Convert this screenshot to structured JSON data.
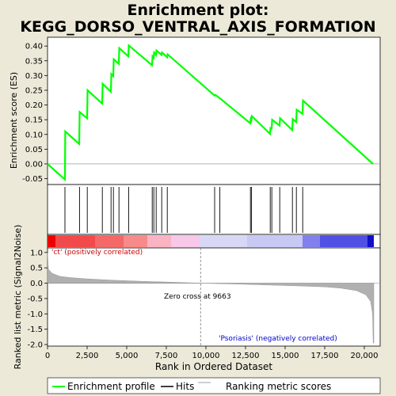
{
  "chart_data": {
    "title_line1": "Enrichment plot:",
    "title_line2": "KEGG_DORSO_VENTRAL_AXIS_FORMATION",
    "type": "line",
    "es_panel": {
      "ylabel": "Enrichment score (ES)",
      "ylim": [
        -0.07,
        0.43
      ],
      "yticks": [
        -0.05,
        0.0,
        0.05,
        0.1,
        0.15,
        0.2,
        0.25,
        0.3,
        0.35,
        0.4
      ],
      "ytick_labels": [
        "-0.05",
        "0.00",
        "0.05",
        "0.10",
        "0.15",
        "0.20",
        "0.25",
        "0.30",
        "0.35",
        "0.40"
      ],
      "line_color": "#00ff00",
      "points": [
        [
          0,
          0.0
        ],
        [
          1100,
          -0.053
        ],
        [
          1120,
          0.11
        ],
        [
          2000,
          0.068
        ],
        [
          2030,
          0.176
        ],
        [
          2500,
          0.155
        ],
        [
          2530,
          0.25
        ],
        [
          3450,
          0.205
        ],
        [
          3480,
          0.272
        ],
        [
          4000,
          0.245
        ],
        [
          4030,
          0.305
        ],
        [
          4150,
          0.298
        ],
        [
          4180,
          0.355
        ],
        [
          4500,
          0.34
        ],
        [
          4530,
          0.393
        ],
        [
          5100,
          0.365
        ],
        [
          5130,
          0.402
        ],
        [
          6600,
          0.335
        ],
        [
          6630,
          0.365
        ],
        [
          6700,
          0.36
        ],
        [
          6730,
          0.378
        ],
        [
          6850,
          0.37
        ],
        [
          6880,
          0.385
        ],
        [
          7200,
          0.37
        ],
        [
          7230,
          0.378
        ],
        [
          7550,
          0.362
        ],
        [
          7580,
          0.372
        ],
        [
          10550,
          0.232
        ],
        [
          10600,
          0.234
        ],
        [
          10900,
          0.222
        ],
        [
          12800,
          0.138
        ],
        [
          12830,
          0.152
        ],
        [
          12870,
          0.148
        ],
        [
          12900,
          0.162
        ],
        [
          14050,
          0.102
        ],
        [
          14080,
          0.122
        ],
        [
          14150,
          0.12
        ],
        [
          14180,
          0.15
        ],
        [
          14650,
          0.13
        ],
        [
          14680,
          0.155
        ],
        [
          15450,
          0.115
        ],
        [
          15480,
          0.152
        ],
        [
          15700,
          0.142
        ],
        [
          15730,
          0.184
        ],
        [
          16100,
          0.17
        ],
        [
          16130,
          0.215
        ],
        [
          20550,
          0.0
        ]
      ]
    },
    "hits": {
      "positions": [
        1100,
        2020,
        2510,
        3460,
        4010,
        4160,
        4510,
        5120,
        6610,
        6710,
        6860,
        7210,
        7560,
        10550,
        10880,
        12810,
        12880,
        14060,
        14160,
        14660,
        15460,
        15710,
        16110
      ]
    },
    "heatbar": {
      "segments": [
        {
          "from": 0,
          "to": 500,
          "color": "#ee0000"
        },
        {
          "from": 500,
          "to": 3000,
          "color": "#f24a4a"
        },
        {
          "from": 3000,
          "to": 4800,
          "color": "#f56868"
        },
        {
          "from": 4800,
          "to": 6300,
          "color": "#f88a8a"
        },
        {
          "from": 6300,
          "to": 7800,
          "color": "#fab3c3"
        },
        {
          "from": 7800,
          "to": 9600,
          "color": "#f8c8e8"
        },
        {
          "from": 9600,
          "to": 12600,
          "color": "#d8d8f6"
        },
        {
          "from": 12600,
          "to": 16100,
          "color": "#c8c8f4"
        },
        {
          "from": 16100,
          "to": 17200,
          "color": "#8080ee"
        },
        {
          "from": 17200,
          "to": 20200,
          "color": "#5050e4"
        },
        {
          "from": 20200,
          "to": 20600,
          "color": "#1010c8"
        }
      ]
    },
    "metric_panel": {
      "ylabel": "Ranked list metric (Signal2Noise)",
      "ylim": [
        -2.05,
        1.15
      ],
      "yticks": [
        1.0,
        0.5,
        0.0,
        -0.5,
        -1.0,
        -1.5,
        -2.0
      ],
      "ytick_labels": [
        "1.0",
        "0.5",
        "0.0",
        "-0.5",
        "-1.0",
        "-1.5",
        "-2.0"
      ],
      "profile": [
        [
          0,
          1.0
        ],
        [
          60,
          0.45
        ],
        [
          300,
          0.32
        ],
        [
          800,
          0.22
        ],
        [
          1500,
          0.18
        ],
        [
          2500,
          0.14
        ],
        [
          4000,
          0.1
        ],
        [
          6000,
          0.06
        ],
        [
          8000,
          0.03
        ],
        [
          9663,
          0.0
        ],
        [
          12000,
          -0.03
        ],
        [
          14000,
          -0.06
        ],
        [
          16000,
          -0.09
        ],
        [
          17500,
          -0.12
        ],
        [
          18500,
          -0.16
        ],
        [
          19500,
          -0.24
        ],
        [
          20100,
          -0.38
        ],
        [
          20400,
          -0.6
        ],
        [
          20520,
          -1.0
        ],
        [
          20560,
          -1.95
        ],
        [
          20600,
          -1.95
        ]
      ],
      "pos_label": "'ct' (positively correlated)",
      "neg_label": "'Psoriasis' (negatively correlated)",
      "zero_cross_label": "Zero cross at 9663",
      "zero_cross": 9663
    },
    "xaxis": {
      "xlabel": "Rank in Ordered Dataset",
      "xlim": [
        0,
        21000
      ],
      "xticks": [
        0,
        2500,
        5000,
        7500,
        10000,
        12500,
        15000,
        17500,
        20000
      ],
      "xtick_labels": [
        "0",
        "2,500",
        "5,000",
        "7,500",
        "10,000",
        "12,500",
        "15,000",
        "17,500",
        "20,000"
      ],
      "n_genes": 20600
    },
    "legend": {
      "items": [
        "Enrichment profile",
        "Hits",
        "Ranking metric scores"
      ]
    },
    "colors": {
      "es_line": "#00ff00",
      "pos_label": "#cc0000",
      "neg_label": "#0000cc",
      "metric_fill": "#b0b0b0",
      "background": "#ece9d8"
    }
  }
}
